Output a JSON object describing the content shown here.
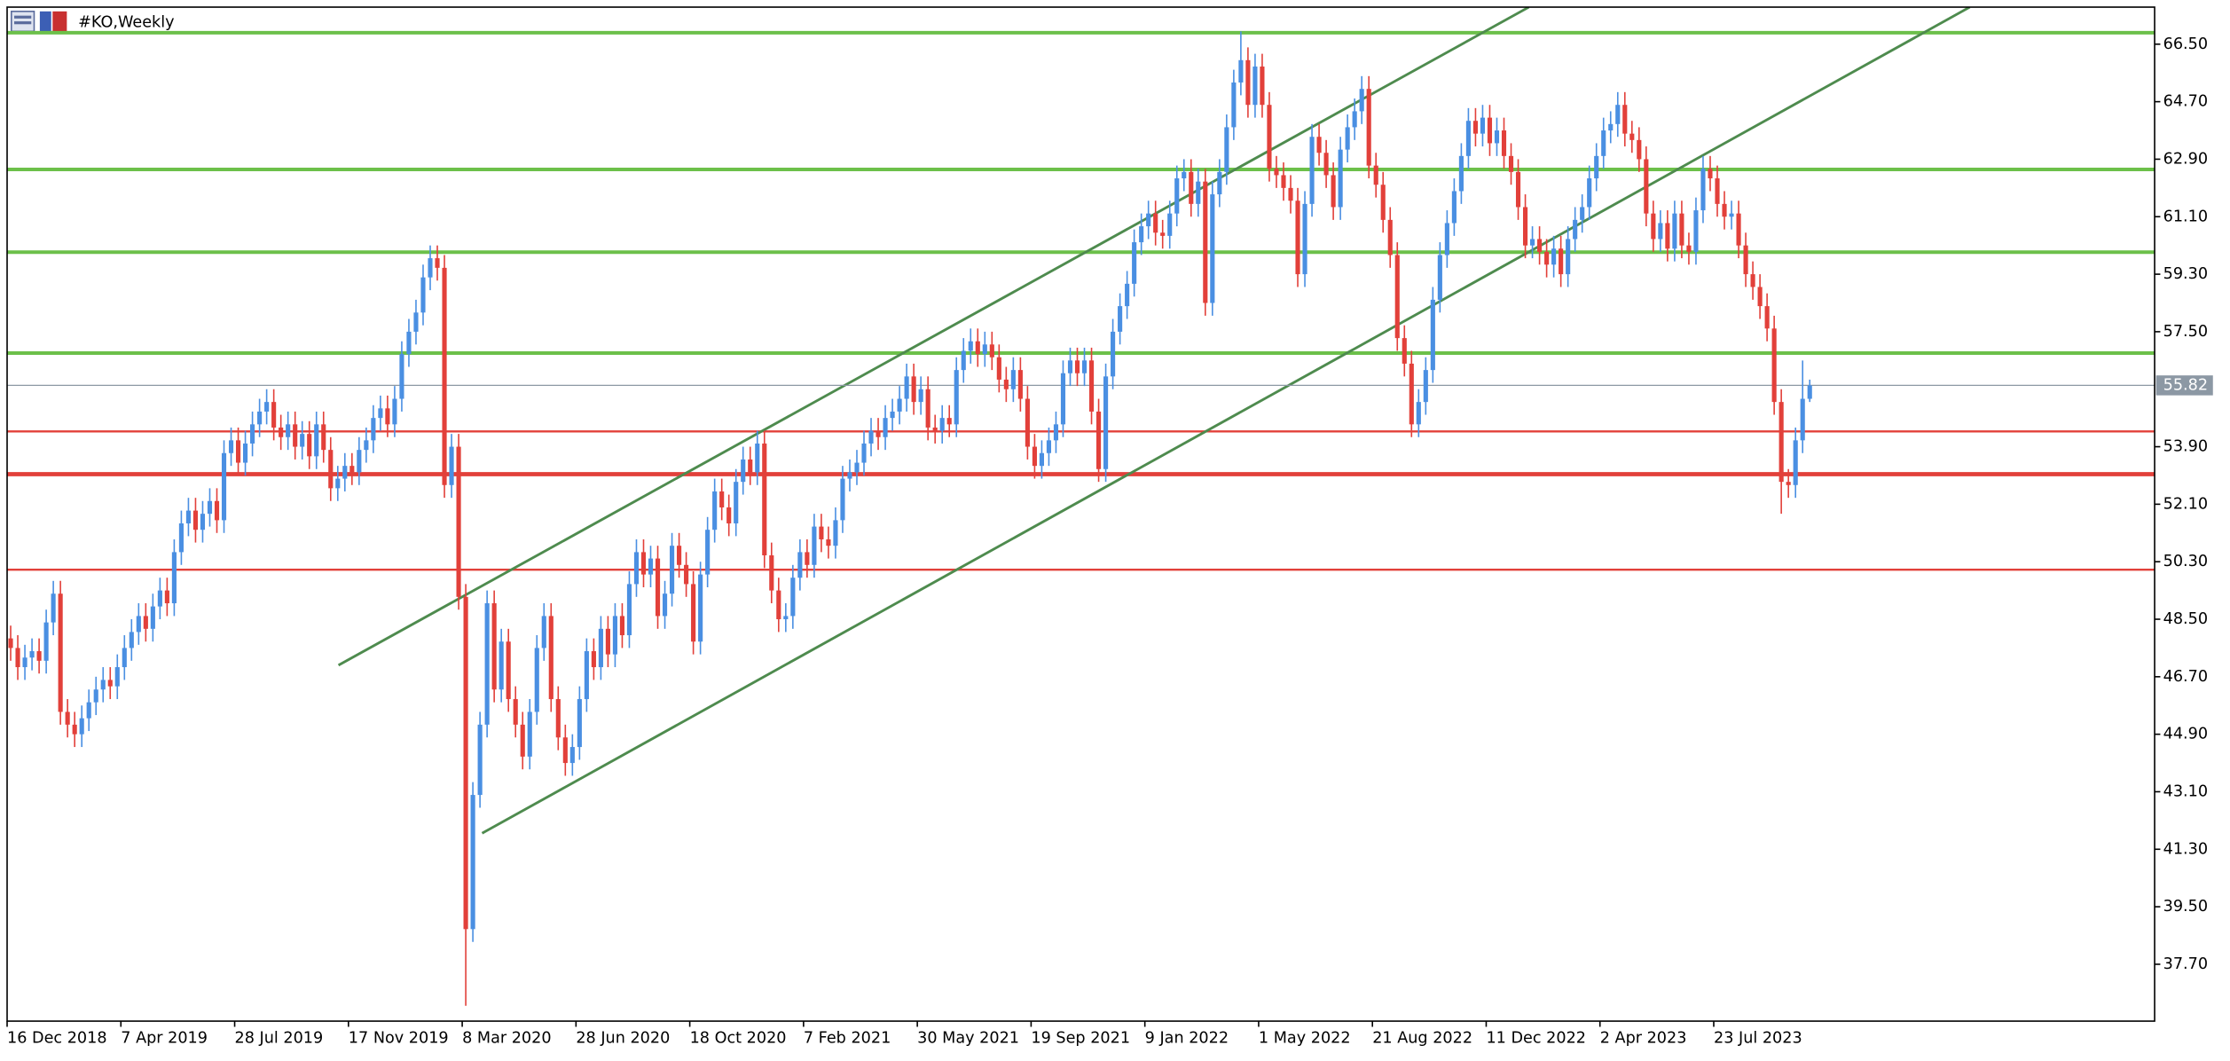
{
  "chart_data": {
    "type": "candlestick",
    "title": "#KO,Weekly",
    "up_color": "#4a8fe2",
    "down_color": "#e2403a",
    "xlim": [
      -0.5,
      301.5
    ],
    "ylim": [
      35.92,
      67.66
    ],
    "xticks": [
      {
        "value": 0,
        "label": "16 Dec 2018"
      },
      {
        "value": 16,
        "label": "7 Apr 2019"
      },
      {
        "value": 32,
        "label": "28 Jul 2019"
      },
      {
        "value": 48,
        "label": "17 Nov 2019"
      },
      {
        "value": 64,
        "label": "8 Mar 2020"
      },
      {
        "value": 80,
        "label": "28 Jun 2020"
      },
      {
        "value": 96,
        "label": "18 Oct 2020"
      },
      {
        "value": 112,
        "label": "7 Feb 2021"
      },
      {
        "value": 128,
        "label": "30 May 2021"
      },
      {
        "value": 144,
        "label": "19 Sep 2021"
      },
      {
        "value": 160,
        "label": "9 Jan 2022"
      },
      {
        "value": 176,
        "label": "1 May 2022"
      },
      {
        "value": 192,
        "label": "21 Aug 2022"
      },
      {
        "value": 208,
        "label": "11 Dec 2022"
      },
      {
        "value": 224,
        "label": "2 Apr 2023"
      },
      {
        "value": 240,
        "label": "23 Jul 2023"
      }
    ],
    "yticks": [
      {
        "value": 66.5,
        "label": "66.50"
      },
      {
        "value": 64.7,
        "label": "64.70"
      },
      {
        "value": 62.9,
        "label": "62.90"
      },
      {
        "value": 61.1,
        "label": "61.10"
      },
      {
        "value": 59.3,
        "label": "59.30"
      },
      {
        "value": 57.5,
        "label": "57.50"
      },
      {
        "value": 53.9,
        "label": "53.90"
      },
      {
        "value": 52.1,
        "label": "52.10"
      },
      {
        "value": 50.3,
        "label": "50.30"
      },
      {
        "value": 48.5,
        "label": "48.50"
      },
      {
        "value": 46.7,
        "label": "46.70"
      },
      {
        "value": 44.9,
        "label": "44.90"
      },
      {
        "value": 43.1,
        "label": "43.10"
      },
      {
        "value": 41.3,
        "label": "41.30"
      },
      {
        "value": 39.5,
        "label": "39.50"
      },
      {
        "value": 37.7,
        "label": "37.70"
      }
    ],
    "levels": [
      {
        "value": 66.86,
        "color": "#6cc04a",
        "width": 2.5
      },
      {
        "value": 62.58,
        "color": "#6cc04a",
        "width": 2.5
      },
      {
        "value": 59.99,
        "color": "#6cc04a",
        "width": 2.5
      },
      {
        "value": 56.83,
        "color": "#6cc04a",
        "width": 2.5
      },
      {
        "value": 54.38,
        "color": "#e2403a",
        "width": 1.5
      },
      {
        "value": 53.04,
        "color": "#e2403a",
        "width": 3
      },
      {
        "value": 50.05,
        "color": "#e2403a",
        "width": 1.5
      }
    ],
    "channels": [
      {
        "x": [
          46.1,
          213.5
        ],
        "y": [
          47.06,
          67.66
        ],
        "color": "#4e8b4e"
      },
      {
        "x": [
          66.3,
          275.5
        ],
        "y": [
          41.8,
          67.66
        ],
        "color": "#4e8b4e"
      }
    ],
    "series": [
      {
        "open": [
          47.9,
          47.6,
          47.0,
          47.3,
          47.5,
          47.2,
          48.4,
          49.3,
          45.6,
          45.2,
          44.9,
          45.4,
          45.9,
          46.3,
          46.6,
          46.4,
          47.0,
          47.6,
          48.1,
          48.6,
          48.2,
          48.9,
          49.4,
          49.0,
          50.6,
          51.5,
          51.9,
          51.3,
          51.8,
          52.2,
          51.6,
          53.7,
          54.1,
          53.4,
          54.0,
          54.6,
          55.0,
          55.3,
          54.5,
          54.2,
          54.6,
          53.9,
          54.3,
          53.6,
          54.6,
          53.8,
          52.6,
          52.9,
          53.3,
          53.1,
          53.8,
          54.1,
          54.8,
          55.1,
          54.6,
          55.4,
          56.8,
          57.5,
          58.1,
          59.2,
          59.8,
          59.5,
          52.7,
          53.9,
          49.2,
          38.8,
          43.0,
          45.2,
          49.0,
          46.3,
          47.8,
          46.0,
          45.2,
          44.2,
          45.6,
          47.6,
          48.6,
          46.0,
          44.8,
          44.0,
          44.5,
          46.0,
          47.5,
          47.0,
          48.2,
          47.4,
          48.6,
          48.0,
          49.6,
          50.6,
          49.9,
          50.4,
          48.6,
          49.3,
          50.8,
          50.2,
          49.6,
          47.8,
          49.9,
          51.3,
          52.5,
          52.0,
          51.5,
          52.8,
          53.5,
          53.1,
          54.0,
          50.5,
          49.4,
          48.5,
          48.6,
          49.8,
          50.6,
          50.2,
          51.4,
          51.0,
          50.8,
          51.6,
          52.9,
          53.1,
          53.4,
          54.0,
          54.4,
          54.2,
          54.8,
          55.0,
          55.4,
          56.1,
          55.3,
          55.7,
          54.5,
          54.4,
          54.8,
          54.6,
          56.3,
          56.9,
          57.2,
          56.8,
          57.1,
          56.7,
          56.0,
          55.7,
          56.3,
          55.4,
          53.9,
          53.3,
          53.7,
          54.1,
          54.6,
          56.2,
          56.6,
          56.2,
          56.6,
          55.0,
          53.2,
          56.1,
          57.5,
          58.3,
          59.0,
          60.3,
          60.8,
          61.2,
          60.6,
          60.5,
          61.2,
          62.3,
          62.5,
          61.5,
          62.2,
          58.4,
          61.8,
          62.5,
          63.9,
          65.3,
          66.0,
          64.6,
          65.8,
          64.6,
          62.6,
          62.4,
          62.0,
          61.6,
          59.3,
          61.5,
          63.6,
          63.1,
          62.4,
          61.4,
          63.2,
          63.9,
          64.4,
          65.1,
          62.7,
          62.1,
          61.0,
          59.9,
          57.3,
          56.5,
          54.6,
          55.3,
          56.3,
          58.5,
          59.9,
          60.9,
          61.9,
          63.0,
          64.1,
          63.7,
          64.2,
          63.4,
          63.8,
          63.0,
          62.5,
          61.4,
          60.2,
          60.4,
          60.0,
          59.6,
          60.1,
          59.3,
          60.4,
          61.0,
          61.4,
          62.3,
          63.0,
          63.8,
          64.0,
          64.6,
          63.7,
          63.5,
          62.9,
          61.2,
          60.4,
          60.9,
          60.1,
          61.2,
          60.2,
          60.0,
          61.3,
          62.6,
          62.3,
          61.5,
          61.1,
          61.2,
          60.2,
          59.3,
          58.9,
          58.3,
          57.6,
          55.3,
          52.8,
          52.7,
          54.1,
          55.4
        ],
        "high": [
          48.3,
          48.0,
          47.7,
          47.9,
          47.9,
          48.8,
          49.7,
          49.7,
          46.0,
          45.6,
          45.8,
          46.3,
          46.7,
          47.0,
          47.0,
          47.4,
          48.0,
          48.5,
          49.0,
          49.0,
          49.3,
          49.8,
          49.8,
          51.0,
          51.9,
          52.3,
          52.3,
          52.2,
          52.6,
          52.6,
          54.1,
          54.5,
          54.5,
          54.4,
          55.0,
          55.4,
          55.7,
          55.7,
          54.9,
          55.0,
          55.0,
          54.7,
          54.7,
          55.0,
          55.0,
          54.2,
          53.3,
          53.7,
          53.7,
          54.2,
          54.5,
          55.2,
          55.5,
          55.5,
          55.8,
          57.2,
          57.9,
          58.5,
          59.6,
          60.2,
          60.2,
          59.9,
          54.3,
          54.3,
          49.6,
          43.4,
          45.6,
          49.4,
          49.4,
          48.2,
          48.2,
          46.4,
          45.6,
          46.0,
          48.0,
          49.0,
          49.0,
          46.4,
          45.2,
          44.9,
          46.4,
          47.9,
          47.9,
          48.6,
          48.6,
          49.0,
          49.0,
          50.0,
          51.0,
          51.0,
          50.8,
          50.8,
          49.7,
          51.2,
          51.2,
          50.6,
          50.0,
          50.3,
          51.7,
          52.9,
          52.9,
          52.4,
          53.2,
          53.9,
          53.9,
          54.4,
          54.4,
          50.9,
          49.8,
          49.0,
          50.2,
          51.0,
          51.0,
          51.8,
          51.8,
          51.4,
          52.0,
          53.3,
          53.5,
          53.8,
          54.4,
          54.8,
          54.8,
          55.2,
          55.4,
          55.8,
          56.5,
          56.5,
          56.1,
          56.1,
          54.9,
          55.2,
          55.2,
          56.7,
          57.3,
          57.6,
          57.6,
          57.5,
          57.5,
          57.1,
          56.4,
          56.7,
          56.7,
          55.8,
          54.3,
          54.1,
          54.5,
          55.0,
          56.6,
          57.0,
          57.0,
          57.0,
          57.0,
          55.4,
          56.5,
          57.9,
          58.7,
          59.4,
          60.7,
          61.2,
          61.6,
          61.6,
          61.0,
          61.6,
          62.7,
          62.9,
          62.9,
          62.6,
          62.6,
          62.2,
          62.9,
          64.3,
          65.7,
          66.9,
          66.4,
          66.2,
          66.2,
          65.0,
          63.0,
          62.8,
          62.4,
          62.0,
          61.9,
          64.0,
          64.0,
          63.5,
          62.8,
          63.6,
          64.3,
          64.8,
          65.5,
          65.5,
          63.1,
          62.5,
          61.4,
          60.3,
          57.7,
          56.9,
          55.7,
          56.7,
          58.9,
          60.3,
          61.3,
          62.3,
          63.4,
          64.5,
          64.5,
          64.6,
          64.6,
          64.2,
          64.2,
          63.4,
          62.9,
          61.8,
          60.8,
          60.8,
          60.4,
          60.5,
          60.5,
          60.8,
          61.4,
          61.8,
          62.7,
          63.4,
          64.2,
          64.4,
          65.0,
          65.0,
          64.1,
          63.9,
          63.3,
          61.6,
          61.3,
          61.3,
          61.6,
          61.6,
          60.6,
          61.7,
          63.0,
          63.0,
          62.7,
          61.9,
          61.6,
          61.6,
          60.6,
          59.7,
          59.3,
          58.7,
          58.0,
          55.7,
          53.2,
          54.5,
          56.6,
          56.0
        ],
        "low": [
          47.2,
          46.6,
          46.6,
          46.9,
          46.8,
          46.8,
          48.0,
          45.2,
          44.8,
          44.5,
          44.5,
          45.0,
          45.5,
          45.9,
          46.0,
          46.0,
          46.6,
          47.2,
          47.7,
          47.8,
          47.8,
          48.5,
          48.6,
          48.6,
          50.2,
          51.1,
          50.9,
          50.9,
          51.4,
          51.2,
          51.2,
          53.3,
          53.0,
          53.0,
          53.6,
          54.2,
          54.6,
          54.1,
          53.8,
          53.8,
          53.5,
          53.5,
          53.2,
          53.2,
          53.4,
          52.2,
          52.2,
          52.5,
          52.7,
          52.7,
          53.4,
          53.7,
          54.4,
          54.2,
          54.2,
          55.0,
          56.4,
          57.1,
          57.7,
          58.8,
          59.1,
          52.3,
          52.3,
          48.8,
          36.4,
          38.4,
          42.6,
          44.8,
          45.9,
          45.9,
          45.6,
          44.8,
          43.8,
          43.8,
          45.2,
          47.2,
          45.6,
          44.4,
          43.6,
          43.6,
          44.1,
          45.6,
          46.6,
          46.6,
          47.0,
          47.0,
          47.6,
          47.6,
          49.2,
          49.5,
          49.5,
          48.2,
          48.2,
          48.9,
          49.8,
          49.2,
          47.4,
          47.4,
          49.5,
          50.9,
          51.6,
          51.1,
          51.1,
          52.4,
          52.7,
          52.7,
          50.1,
          49.0,
          48.1,
          48.1,
          48.2,
          49.4,
          49.8,
          49.8,
          50.6,
          50.4,
          50.4,
          51.2,
          52.5,
          52.7,
          53.0,
          53.6,
          53.8,
          53.8,
          54.4,
          54.6,
          55.0,
          54.9,
          54.9,
          54.1,
          54.0,
          54.0,
          54.2,
          54.2,
          55.9,
          56.5,
          56.4,
          56.4,
          56.3,
          55.6,
          55.3,
          55.3,
          55.0,
          53.5,
          52.9,
          52.9,
          53.3,
          53.7,
          54.2,
          55.8,
          55.8,
          55.8,
          54.6,
          52.8,
          52.8,
          55.7,
          57.1,
          57.9,
          58.6,
          59.9,
          60.4,
          60.2,
          60.1,
          60.1,
          60.8,
          61.9,
          61.1,
          61.1,
          58.0,
          58.0,
          61.4,
          62.1,
          63.5,
          64.9,
          64.2,
          64.2,
          64.2,
          62.2,
          62.0,
          61.6,
          61.2,
          58.9,
          58.9,
          61.1,
          62.7,
          62.0,
          61.0,
          61.0,
          62.8,
          63.5,
          64.0,
          62.3,
          61.7,
          60.6,
          59.5,
          56.9,
          56.1,
          54.2,
          54.2,
          54.9,
          55.9,
          58.1,
          59.5,
          60.5,
          61.5,
          62.6,
          63.3,
          63.3,
          63.0,
          63.0,
          62.6,
          62.1,
          61.0,
          59.8,
          59.8,
          59.6,
          59.2,
          59.2,
          58.9,
          58.9,
          60.0,
          60.6,
          61.0,
          61.9,
          62.6,
          63.4,
          63.6,
          63.3,
          63.1,
          62.5,
          60.8,
          60.0,
          60.0,
          59.7,
          59.7,
          59.8,
          59.6,
          59.6,
          60.9,
          61.9,
          61.1,
          60.7,
          60.7,
          59.8,
          58.9,
          58.5,
          57.9,
          57.2,
          54.9,
          51.8,
          52.3,
          52.3,
          53.7,
          55.3
        ],
        "close": [
          47.6,
          47.0,
          47.3,
          47.5,
          47.2,
          48.4,
          49.3,
          45.6,
          45.2,
          44.9,
          45.4,
          45.9,
          46.3,
          46.6,
          46.4,
          47.0,
          47.6,
          48.1,
          48.6,
          48.2,
          48.9,
          49.4,
          49.0,
          50.6,
          51.5,
          51.9,
          51.3,
          51.8,
          52.2,
          51.6,
          53.7,
          54.1,
          53.4,
          54.0,
          54.6,
          55.0,
          55.3,
          54.5,
          54.2,
          54.6,
          53.9,
          54.3,
          53.6,
          54.6,
          53.8,
          52.6,
          52.9,
          53.3,
          53.1,
          53.8,
          54.1,
          54.8,
          55.1,
          54.6,
          55.4,
          56.8,
          57.5,
          58.1,
          59.2,
          59.8,
          59.5,
          52.7,
          53.9,
          49.2,
          38.8,
          43.0,
          45.2,
          49.0,
          46.3,
          47.8,
          46.0,
          45.2,
          44.2,
          45.6,
          47.6,
          48.6,
          46.0,
          44.8,
          44.0,
          44.5,
          46.0,
          47.5,
          47.0,
          48.2,
          47.4,
          48.6,
          48.0,
          49.6,
          50.6,
          49.9,
          50.4,
          48.6,
          49.3,
          50.8,
          50.2,
          49.6,
          47.8,
          49.9,
          51.3,
          52.5,
          52.0,
          51.5,
          52.8,
          53.5,
          53.1,
          54.0,
          50.5,
          49.4,
          48.5,
          48.6,
          49.8,
          50.6,
          50.2,
          51.4,
          51.0,
          50.8,
          51.6,
          52.9,
          53.1,
          53.4,
          54.0,
          54.4,
          54.2,
          54.8,
          55.0,
          55.4,
          56.1,
          55.3,
          55.7,
          54.5,
          54.4,
          54.8,
          54.6,
          56.3,
          56.9,
          57.2,
          56.8,
          57.1,
          56.7,
          56.0,
          55.7,
          56.3,
          55.4,
          53.9,
          53.3,
          53.7,
          54.1,
          54.6,
          56.2,
          56.6,
          56.2,
          56.6,
          55.0,
          53.2,
          56.1,
          57.5,
          58.3,
          59.0,
          60.3,
          60.8,
          61.2,
          60.6,
          60.5,
          61.2,
          62.3,
          62.5,
          61.5,
          62.2,
          58.4,
          61.8,
          62.5,
          63.9,
          65.3,
          66.0,
          64.6,
          65.8,
          64.6,
          62.6,
          62.4,
          62.0,
          61.6,
          59.3,
          61.5,
          63.6,
          63.1,
          62.4,
          61.4,
          63.2,
          63.9,
          64.4,
          65.1,
          62.7,
          62.1,
          61.0,
          59.9,
          57.3,
          56.5,
          54.6,
          55.3,
          56.3,
          58.5,
          59.9,
          60.9,
          61.9,
          63.0,
          64.1,
          63.7,
          64.2,
          63.4,
          63.8,
          63.0,
          62.5,
          61.4,
          60.2,
          60.4,
          60.0,
          59.6,
          60.1,
          59.3,
          60.4,
          61.0,
          61.4,
          62.3,
          63.0,
          63.8,
          64.0,
          64.6,
          63.7,
          63.5,
          62.9,
          61.2,
          60.4,
          60.9,
          60.1,
          61.2,
          60.2,
          60.0,
          61.3,
          62.6,
          62.3,
          61.5,
          61.1,
          61.2,
          60.2,
          59.3,
          58.9,
          58.3,
          57.6,
          55.3,
          52.8,
          52.7,
          54.1,
          55.4,
          55.82
        ]
      }
    ]
  }
}
